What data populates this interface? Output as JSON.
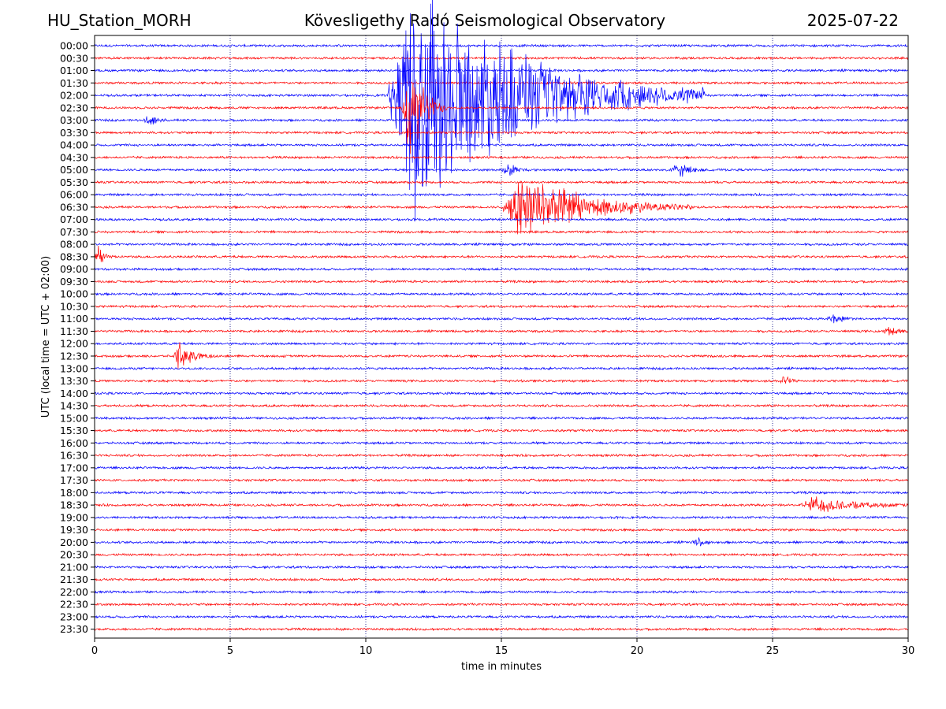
{
  "header": {
    "station": "HU_Station_MORH",
    "observatory": "Kövesligethy Radó Seismological Observatory",
    "date": "2025-07-22"
  },
  "chart_data": {
    "type": "line",
    "title": "Kövesligethy Radó Seismological Observatory",
    "xlabel": "time in minutes",
    "ylabel": "UTC (local time = UTC + 02:00)",
    "xlim": [
      0,
      30
    ],
    "x_ticks": [
      "0",
      "5",
      "10",
      "15",
      "20",
      "25",
      "30"
    ],
    "x_tick_values": [
      0,
      5,
      10,
      15,
      20,
      25,
      30
    ],
    "grid": "vertical dotted",
    "colors": {
      "even_rows": "#0000ff",
      "odd_rows": "#ff0000",
      "grid": "#000080"
    },
    "rows": [
      "00:00",
      "00:30",
      "01:00",
      "01:30",
      "02:00",
      "02:30",
      "03:00",
      "03:30",
      "04:00",
      "04:30",
      "05:00",
      "05:30",
      "06:00",
      "06:30",
      "07:00",
      "07:30",
      "08:00",
      "08:30",
      "09:00",
      "09:30",
      "10:00",
      "10:30",
      "11:00",
      "11:30",
      "12:00",
      "12:30",
      "13:00",
      "13:30",
      "14:00",
      "14:30",
      "15:00",
      "15:30",
      "16:00",
      "16:30",
      "17:00",
      "17:30",
      "18:00",
      "18:30",
      "19:00",
      "19:30",
      "20:00",
      "20:30",
      "21:00",
      "21:30",
      "22:00",
      "22:30",
      "23:00",
      "23:30"
    ],
    "events": [
      {
        "row": "02:00",
        "start_min": 10.8,
        "peak_min": 11.6,
        "end_min": 22.5,
        "peak_amp": 1.0
      },
      {
        "row": "02:30",
        "start_min": 11.3,
        "peak_min": 11.6,
        "end_min": 13.0,
        "peak_amp": 0.45
      },
      {
        "row": "03:00",
        "start_min": 1.8,
        "peak_min": 2.1,
        "end_min": 2.6,
        "peak_amp": 0.06
      },
      {
        "row": "05:00",
        "start_min": 15.0,
        "peak_min": 15.3,
        "end_min": 16.0,
        "peak_amp": 0.06
      },
      {
        "row": "05:00",
        "start_min": 21.2,
        "peak_min": 21.6,
        "end_min": 22.6,
        "peak_amp": 0.05
      },
      {
        "row": "06:30",
        "start_min": 15.0,
        "peak_min": 15.8,
        "end_min": 22.0,
        "peak_amp": 0.28
      },
      {
        "row": "08:30",
        "start_min": 0.0,
        "peak_min": 0.15,
        "end_min": 0.8,
        "peak_amp": 0.08
      },
      {
        "row": "11:00",
        "start_min": 27.0,
        "peak_min": 27.3,
        "end_min": 28.0,
        "peak_amp": 0.05
      },
      {
        "row": "11:30",
        "start_min": 29.0,
        "peak_min": 29.3,
        "end_min": 30.0,
        "peak_amp": 0.05
      },
      {
        "row": "12:30",
        "start_min": 2.9,
        "peak_min": 3.1,
        "end_min": 4.5,
        "peak_amp": 0.1
      },
      {
        "row": "13:30",
        "start_min": 25.2,
        "peak_min": 25.5,
        "end_min": 26.0,
        "peak_amp": 0.04
      },
      {
        "row": "18:30",
        "start_min": 26.0,
        "peak_min": 26.6,
        "end_min": 30.0,
        "peak_amp": 0.07
      },
      {
        "row": "20:00",
        "start_min": 22.0,
        "peak_min": 22.3,
        "end_min": 22.8,
        "peak_amp": 0.03
      }
    ]
  }
}
